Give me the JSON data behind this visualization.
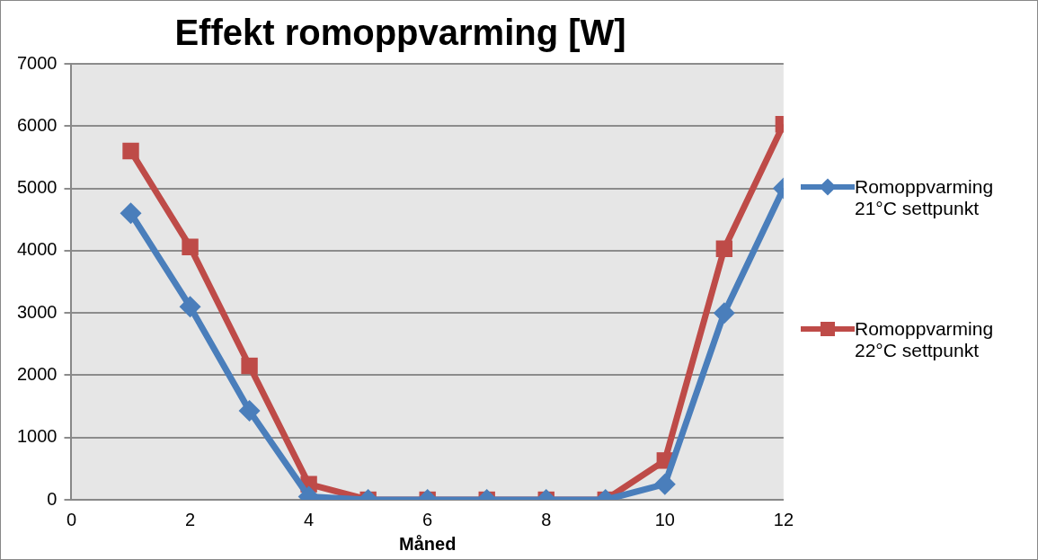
{
  "chart_data": {
    "type": "line",
    "title": "Effekt romoppvarming [W]",
    "xlabel": "Måned",
    "x": [
      1,
      2,
      3,
      4,
      5,
      6,
      7,
      8,
      9,
      10,
      11,
      12
    ],
    "series": [
      {
        "name": "Romoppvarming 21°C settpunkt",
        "color": "#4a7ebb",
        "marker": "diamond",
        "values": [
          4600,
          3100,
          1430,
          50,
          0,
          0,
          0,
          0,
          0,
          250,
          3000,
          5000
        ]
      },
      {
        "name": "Romoppvarming 22°C settpunkt",
        "color": "#be4b48",
        "marker": "square",
        "values": [
          5600,
          4060,
          2150,
          250,
          0,
          0,
          0,
          0,
          0,
          630,
          4030,
          6030
        ]
      }
    ],
    "xlim": [
      0,
      12
    ],
    "xticks": [
      0,
      2,
      4,
      6,
      8,
      10,
      12
    ],
    "ylim": [
      0,
      7000
    ],
    "yticks": [
      0,
      1000,
      2000,
      3000,
      4000,
      5000,
      6000,
      7000
    ],
    "grid": "y",
    "legend": "right"
  }
}
